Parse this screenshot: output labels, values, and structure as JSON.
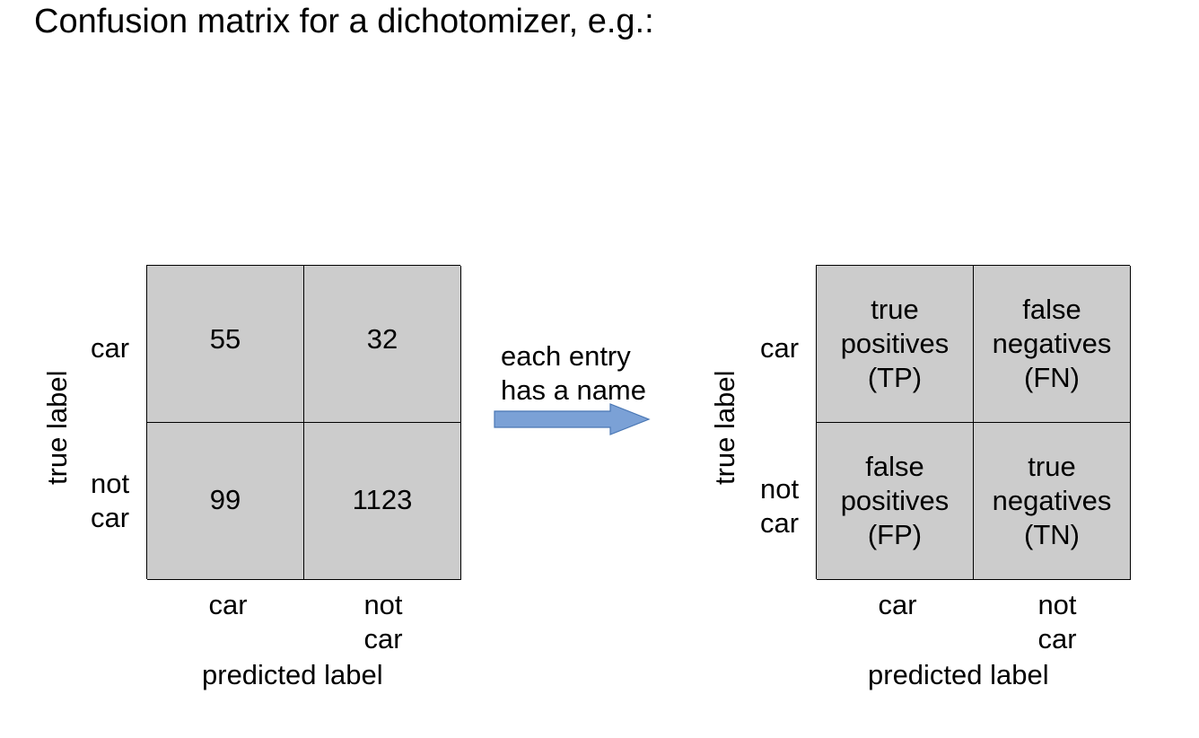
{
  "title": "Confusion matrix for a dichotomizer, e.g.:",
  "arrow_text": "each entry\nhas a name",
  "colors": {
    "cell_fill": "#cccccc",
    "arrow_fill": "#7ba1d6",
    "arrow_stroke": "#4a77b4"
  },
  "left_matrix": {
    "y_axis_label": "true label",
    "x_axis_label": "predicted label",
    "row_labels": [
      "car",
      "not\ncar"
    ],
    "col_labels": [
      "car",
      "not\ncar"
    ],
    "cells": [
      [
        "55",
        "32"
      ],
      [
        "99",
        "1123"
      ]
    ]
  },
  "right_matrix": {
    "y_axis_label": "true label",
    "x_axis_label": "predicted label",
    "row_labels": [
      "car",
      "not\ncar"
    ],
    "col_labels": [
      "car",
      "not\ncar"
    ],
    "cells": [
      [
        "true\npositives\n(TP)",
        "false\nnegatives\n(FN)"
      ],
      [
        "false\npositives\n(FP)",
        "true\nnegatives\n(TN)"
      ]
    ]
  }
}
